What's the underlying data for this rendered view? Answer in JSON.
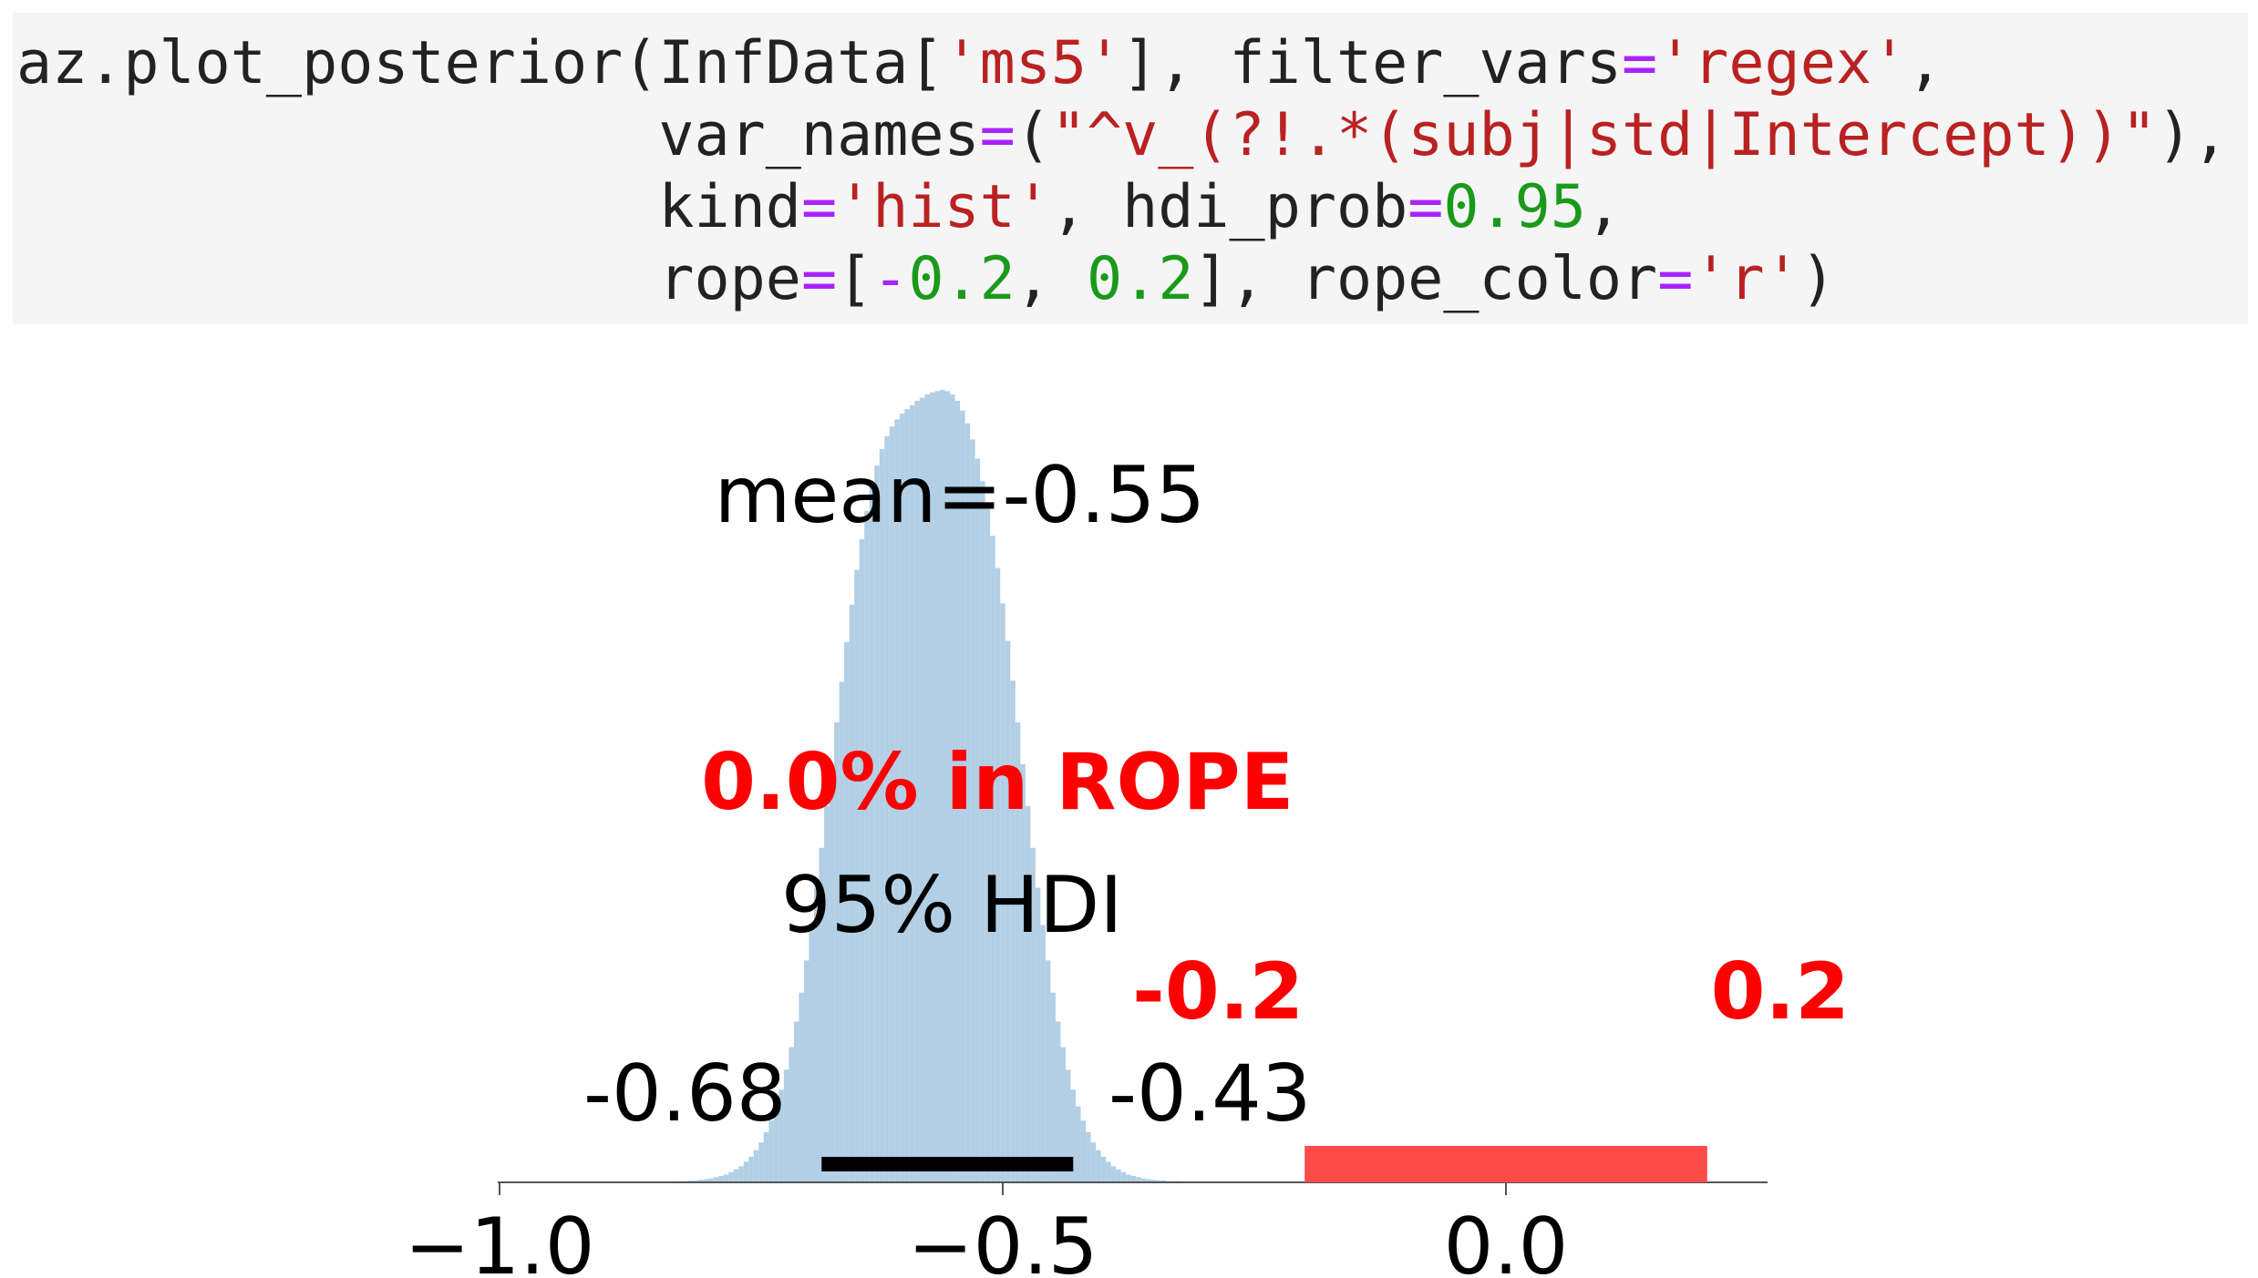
{
  "code": {
    "lines": [
      [
        {
          "t": "az.plot_posterior(InfData[",
          "c": "plain"
        },
        {
          "t": "'ms5'",
          "c": "str"
        },
        {
          "t": "], filter_vars",
          "c": "plain"
        },
        {
          "t": "=",
          "c": "op"
        },
        {
          "t": "'regex'",
          "c": "str"
        },
        {
          "t": ",",
          "c": "plain"
        }
      ],
      [
        {
          "t": "                  var_names",
          "c": "plain"
        },
        {
          "t": "=",
          "c": "op"
        },
        {
          "t": "(",
          "c": "plain"
        },
        {
          "t": "\"^v_(?!.*(subj|std|Intercept))\"",
          "c": "str"
        },
        {
          "t": "),",
          "c": "plain"
        }
      ],
      [
        {
          "t": "                  kind",
          "c": "plain"
        },
        {
          "t": "=",
          "c": "op"
        },
        {
          "t": "'hist'",
          "c": "str"
        },
        {
          "t": ", hdi_prob",
          "c": "plain"
        },
        {
          "t": "=",
          "c": "op"
        },
        {
          "t": "0.95",
          "c": "num"
        },
        {
          "t": ",",
          "c": "plain"
        }
      ],
      [
        {
          "t": "                  rope",
          "c": "plain"
        },
        {
          "t": "=",
          "c": "op"
        },
        {
          "t": "[",
          "c": "plain"
        },
        {
          "t": "-",
          "c": "op"
        },
        {
          "t": "0.2",
          "c": "num"
        },
        {
          "t": ", ",
          "c": "plain"
        },
        {
          "t": "0.2",
          "c": "num"
        },
        {
          "t": "], rope_color",
          "c": "plain"
        },
        {
          "t": "=",
          "c": "op"
        },
        {
          "t": "'r'",
          "c": "str"
        },
        {
          "t": ")",
          "c": "plain"
        }
      ]
    ]
  },
  "chart_data": {
    "type": "bar",
    "kind": "posterior histogram",
    "mean_label": "mean=-0.55",
    "mean": -0.55,
    "rope_label": "0.0% in ROPE",
    "rope": [
      -0.2,
      0.2
    ],
    "rope_tick_labels": [
      "-0.2",
      "0.2"
    ],
    "rope_color": "#ff0000",
    "rope_bar_color": "#ff4a4a",
    "hdi_label": "95% HDI",
    "hdi": [
      -0.68,
      -0.43
    ],
    "hdi_tick_labels": [
      "-0.68",
      "-0.43"
    ],
    "hist_color": "#b2cfe5",
    "xlim": [
      -1.0,
      0.26
    ],
    "xticks": [
      -1.0,
      -0.5,
      0.0
    ],
    "xtick_labels": [
      "−1.0",
      "−0.5",
      "0.0"
    ],
    "bin_width": 0.005,
    "bins_x": [
      -0.82,
      -0.815,
      -0.81,
      -0.805,
      -0.8,
      -0.795,
      -0.79,
      -0.785,
      -0.78,
      -0.775,
      -0.77,
      -0.765,
      -0.76,
      -0.755,
      -0.75,
      -0.745,
      -0.74,
      -0.735,
      -0.73,
      -0.725,
      -0.72,
      -0.715,
      -0.71,
      -0.705,
      -0.7,
      -0.695,
      -0.69,
      -0.685,
      -0.68,
      -0.675,
      -0.67,
      -0.665,
      -0.66,
      -0.655,
      -0.65,
      -0.645,
      -0.64,
      -0.635,
      -0.63,
      -0.625,
      -0.62,
      -0.615,
      -0.61,
      -0.605,
      -0.6,
      -0.595,
      -0.59,
      -0.585,
      -0.58,
      -0.575,
      -0.57,
      -0.565,
      -0.56,
      -0.555,
      -0.55,
      -0.545,
      -0.54,
      -0.535,
      -0.53,
      -0.525,
      -0.52,
      -0.515,
      -0.51,
      -0.505,
      -0.5,
      -0.495,
      -0.49,
      -0.485,
      -0.48,
      -0.475,
      -0.47,
      -0.465,
      -0.46,
      -0.455,
      -0.45,
      -0.445,
      -0.44,
      -0.435,
      -0.43,
      -0.425,
      -0.42,
      -0.415,
      -0.41,
      -0.405,
      -0.4,
      -0.395,
      -0.39,
      -0.385,
      -0.38,
      -0.375,
      -0.37,
      -0.365,
      -0.36,
      -0.355,
      -0.35,
      -0.345,
      -0.34,
      -0.335,
      -0.33,
      -0.325,
      -0.32,
      -0.315,
      -0.31,
      -0.305,
      -0.3
    ],
    "bins_density": [
      0.02,
      0.02,
      0.03,
      0.03,
      0.04,
      0.05,
      0.06,
      0.08,
      0.1,
      0.12,
      0.16,
      0.2,
      0.25,
      0.32,
      0.4,
      0.5,
      0.62,
      0.78,
      0.96,
      1.18,
      1.44,
      1.75,
      2.1,
      2.5,
      2.95,
      3.45,
      4.0,
      4.58,
      5.2,
      5.85,
      6.5,
      7.15,
      7.78,
      8.4,
      8.98,
      9.52,
      10.0,
      10.44,
      10.82,
      11.14,
      11.4,
      11.6,
      11.75,
      11.86,
      11.95,
      12.02,
      12.08,
      12.15,
      12.2,
      12.25,
      12.28,
      12.3,
      12.32,
      12.3,
      12.25,
      12.15,
      12.0,
      11.8,
      11.55,
      11.25,
      10.9,
      10.5,
      10.05,
      9.55,
      9.0,
      8.42,
      7.8,
      7.15,
      6.5,
      5.85,
      5.2,
      4.58,
      4.0,
      3.45,
      2.95,
      2.5,
      2.1,
      1.75,
      1.44,
      1.18,
      0.96,
      0.78,
      0.62,
      0.5,
      0.4,
      0.32,
      0.25,
      0.2,
      0.16,
      0.12,
      0.1,
      0.08,
      0.06,
      0.05,
      0.04,
      0.03,
      0.03,
      0.02,
      0.02,
      0.02,
      0.01,
      0.01,
      0.01,
      0.01,
      0.01
    ]
  }
}
